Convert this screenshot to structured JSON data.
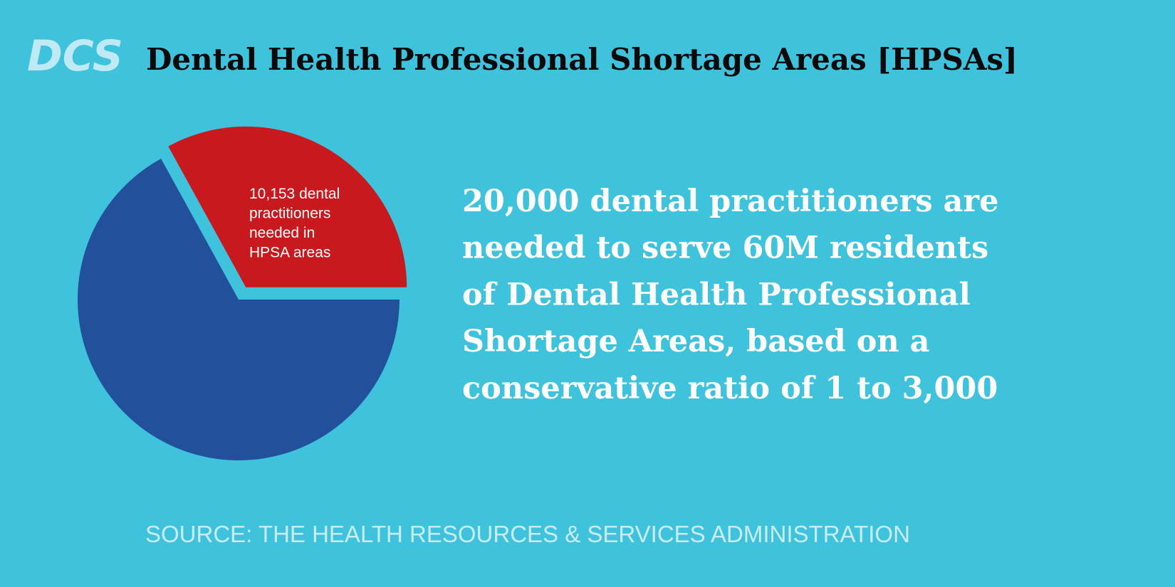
{
  "logo": "DCS",
  "chart_data": {
    "type": "pie",
    "title": "Dental Health Professional Shortage Areas [HPSAs]",
    "values": [
      33,
      67
    ],
    "colors": [
      "#c8191e",
      "#22509b"
    ],
    "annotation": [
      "10,153 dental",
      "practitioners",
      "needed in",
      "HPSA areas"
    ]
  },
  "body": {
    "lines": [
      "20,000 dental practitioners are",
      "needed to serve 60M residents",
      "of Dental Health Professional",
      "Shortage Areas, based on a",
      "conservative ratio of 1 to 3,000"
    ]
  },
  "source": "SOURCE: THE HEALTH RESOURCES & SERVICES ADMINISTRATION"
}
